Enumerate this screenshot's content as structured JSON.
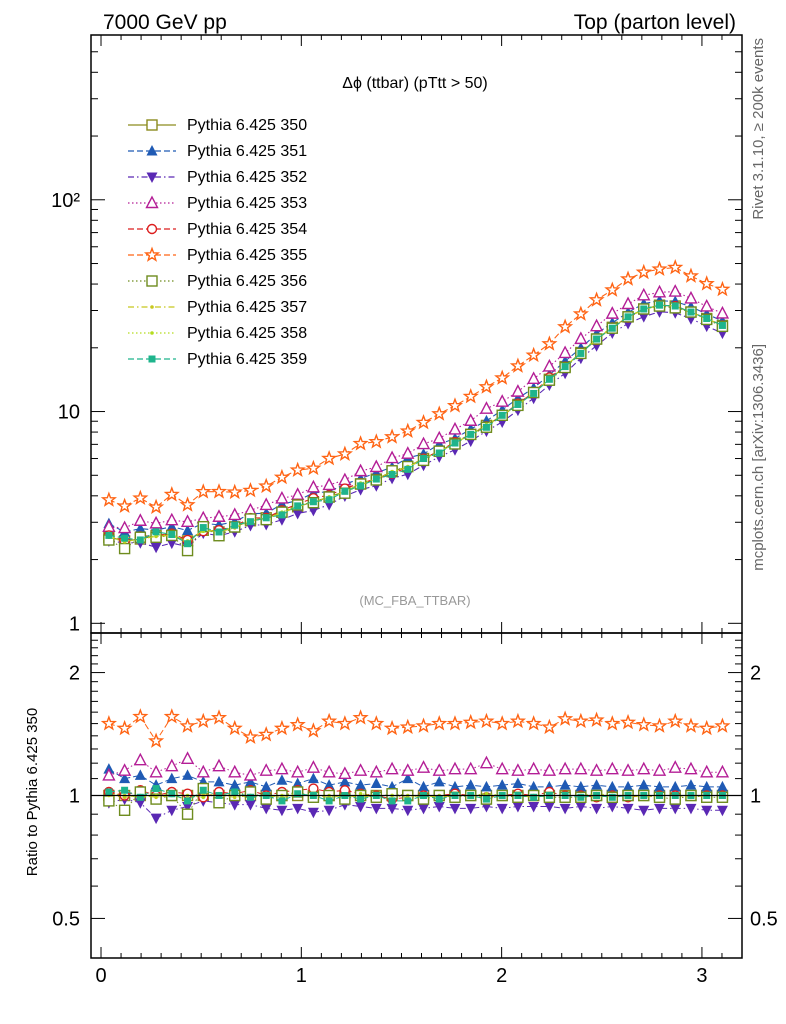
{
  "header": {
    "left": "7000 GeV pp",
    "right": "Top (parton level)"
  },
  "side_labels": {
    "top": "Rivet 3.1.10, ≥ 200k events",
    "bottom": "mcplots.cern.ch [arXiv:1306.3436]"
  },
  "chart_data": {
    "type": "line",
    "title": "Δϕ (ttbar) (pTtt > 50)",
    "annotation": "(MC_FBA_TTBAR)",
    "main": {
      "yscale": "log",
      "xlim": [
        -0.05,
        3.2
      ],
      "ylim": [
        0.9,
        600
      ],
      "yticks": [
        {
          "value": 1,
          "label": "1"
        },
        {
          "value": 10,
          "label": "10"
        },
        {
          "value": 100,
          "label": "10²"
        }
      ]
    },
    "ratio": {
      "ylabel": "Ratio to Pythia 6.425 350",
      "yscale": "log",
      "ylim": [
        0.4,
        2.5
      ],
      "yticks": [
        {
          "value": 0.5,
          "label": "0.5"
        },
        {
          "value": 1,
          "label": "1"
        },
        {
          "value": 2,
          "label": "2"
        }
      ]
    },
    "xticks": [
      {
        "value": 0,
        "label": "0"
      },
      {
        "value": 1,
        "label": "1"
      },
      {
        "value": 2,
        "label": "2"
      },
      {
        "value": 3,
        "label": "3"
      }
    ],
    "legend_position": "top-left",
    "x": [
      0.0393,
      0.1178,
      0.1963,
      0.2749,
      0.3534,
      0.432,
      0.5105,
      0.589,
      0.6676,
      0.7461,
      0.8247,
      0.9032,
      0.9817,
      1.0603,
      1.1388,
      1.2174,
      1.2959,
      1.3744,
      1.453,
      1.5315,
      1.6101,
      1.6886,
      1.7671,
      1.8457,
      1.9242,
      2.0028,
      2.0813,
      2.1598,
      2.2384,
      2.3169,
      2.3955,
      2.474,
      2.5525,
      2.6311,
      2.7096,
      2.7882,
      2.8667,
      2.9452,
      3.0238,
      3.1023
    ],
    "reference": [
      2.55,
      2.45,
      2.5,
      2.6,
      2.6,
      2.45,
      2.75,
      2.7,
      2.85,
      3.05,
      3.15,
      3.35,
      3.55,
      3.75,
      3.95,
      4.2,
      4.55,
      4.8,
      5.2,
      5.5,
      6.0,
      6.5,
      7.1,
      7.8,
      8.6,
      9.6,
      10.8,
      12.3,
      14.2,
      16.3,
      19.0,
      22.0,
      25.0,
      28.0,
      30.5,
      31.8,
      31.5,
      29.5,
      27.5,
      25.5
    ],
    "series": [
      {
        "name": "Pythia 6.425 350",
        "color": "#8c8c1e",
        "marker": "square-open",
        "dash": "solid",
        "ratio": [
          1.0,
          1.0,
          1.0,
          1.0,
          1.0,
          1.0,
          1.0,
          1.0,
          1.0,
          1.0,
          1.0,
          1.0,
          1.0,
          1.0,
          1.0,
          1.0,
          1.0,
          1.0,
          1.0,
          1.0,
          1.0,
          1.0,
          1.0,
          1.0,
          1.0,
          1.0,
          1.0,
          1.0,
          1.0,
          1.0,
          1.0,
          1.0,
          1.0,
          1.0,
          1.0,
          1.0,
          1.0,
          1.0,
          1.0,
          1.0
        ]
      },
      {
        "name": "Pythia 6.425 351",
        "color": "#1f5ab4",
        "marker": "triangle-up-filled",
        "dash": "dashed",
        "ratio": [
          1.16,
          1.1,
          1.12,
          1.06,
          1.1,
          1.12,
          1.08,
          1.08,
          1.06,
          1.08,
          1.05,
          1.09,
          1.07,
          1.1,
          1.06,
          1.08,
          1.06,
          1.07,
          1.05,
          1.1,
          1.05,
          1.08,
          1.05,
          1.06,
          1.05,
          1.06,
          1.07,
          1.05,
          1.05,
          1.06,
          1.05,
          1.06,
          1.05,
          1.05,
          1.06,
          1.05,
          1.05,
          1.06,
          1.05,
          1.05
        ]
      },
      {
        "name": "Pythia 6.425 352",
        "color": "#5a28b4",
        "marker": "triangle-down-filled",
        "dash": "dashdot",
        "ratio": [
          0.96,
          0.98,
          0.96,
          0.88,
          0.92,
          0.94,
          0.97,
          0.96,
          0.95,
          0.95,
          0.93,
          0.92,
          0.93,
          0.91,
          0.92,
          0.95,
          0.94,
          0.93,
          0.93,
          0.92,
          0.93,
          0.94,
          0.93,
          0.93,
          0.94,
          0.93,
          0.94,
          0.94,
          0.94,
          0.93,
          0.94,
          0.93,
          0.94,
          0.93,
          0.92,
          0.93,
          0.93,
          0.93,
          0.92,
          0.92
        ]
      },
      {
        "name": "Pythia 6.425 353",
        "color": "#b41e96",
        "marker": "triangle-up-open",
        "dash": "dotted",
        "ratio": [
          1.12,
          1.15,
          1.22,
          1.14,
          1.18,
          1.23,
          1.14,
          1.18,
          1.14,
          1.12,
          1.15,
          1.16,
          1.14,
          1.17,
          1.14,
          1.13,
          1.15,
          1.14,
          1.16,
          1.15,
          1.17,
          1.15,
          1.16,
          1.16,
          1.2,
          1.16,
          1.15,
          1.16,
          1.15,
          1.16,
          1.16,
          1.15,
          1.16,
          1.15,
          1.16,
          1.15,
          1.17,
          1.16,
          1.14,
          1.14
        ]
      },
      {
        "name": "Pythia 6.425 354",
        "color": "#dc1e1e",
        "marker": "circle-open",
        "dash": "dashed",
        "ratio": [
          1.02,
          1.0,
          1.03,
          1.0,
          1.02,
          1.01,
          0.99,
          1.02,
          1.01,
          1.03,
          1.0,
          1.02,
          1.03,
          1.04,
          1.02,
          1.03,
          1.01,
          1.0,
          0.98,
          0.99,
          1.0,
          1.0,
          1.01,
          1.0,
          0.99,
          1.0,
          1.01,
          1.0,
          1.02,
          1.0,
          1.0,
          0.99,
          1.0,
          0.99,
          1.0,
          1.0,
          1.0,
          1.0,
          1.0,
          1.0
        ]
      },
      {
        "name": "Pythia 6.425 355",
        "color": "#ff6414",
        "marker": "star-open",
        "dash": "dashed",
        "ratio": [
          1.5,
          1.46,
          1.56,
          1.36,
          1.56,
          1.48,
          1.52,
          1.55,
          1.46,
          1.39,
          1.41,
          1.46,
          1.49,
          1.44,
          1.52,
          1.5,
          1.55,
          1.5,
          1.46,
          1.47,
          1.48,
          1.5,
          1.5,
          1.51,
          1.52,
          1.5,
          1.52,
          1.5,
          1.47,
          1.54,
          1.52,
          1.53,
          1.5,
          1.51,
          1.49,
          1.48,
          1.52,
          1.48,
          1.46,
          1.48
        ]
      },
      {
        "name": "Pythia 6.425 356",
        "color": "#6e8c1e",
        "marker": "square-open",
        "dash": "dotted",
        "ratio": [
          0.97,
          0.92,
          1.02,
          0.98,
          1.0,
          0.9,
          1.04,
          0.96,
          1.0,
          1.02,
          0.98,
          1.0,
          1.02,
          0.99,
          1.0,
          0.98,
          1.0,
          0.99,
          1.01,
          1.0,
          0.98,
          1.0,
          0.99,
          1.0,
          0.98,
          1.0,
          0.99,
          1.0,
          0.99,
          0.99,
          0.99,
          1.0,
          0.99,
          1.0,
          1.0,
          0.99,
          0.98,
          1.0,
          0.99,
          0.99
        ]
      },
      {
        "name": "Pythia 6.425 357",
        "color": "#c8c81e",
        "marker": "small-dot",
        "dash": "dashdot",
        "ratio": [
          1.0,
          0.99,
          1.0,
          0.99,
          1.0,
          0.98,
          1.01,
          1.0,
          0.99,
          1.0,
          1.0,
          0.99,
          1.0,
          1.0,
          0.99,
          1.0,
          0.99,
          1.0,
          1.0,
          0.99,
          1.0,
          0.99,
          1.0,
          1.0,
          0.99,
          1.0,
          1.0,
          0.99,
          1.0,
          1.0,
          1.0,
          0.99,
          1.0,
          1.0,
          0.99,
          1.0,
          1.0,
          0.99,
          1.0,
          1.0
        ]
      },
      {
        "name": "Pythia 6.425 358",
        "color": "#b4dc1e",
        "marker": "small-dot",
        "dash": "dotted",
        "ratio": [
          1.01,
          1.0,
          0.99,
          1.0,
          1.01,
          1.0,
          0.99,
          1.01,
          1.0,
          1.0,
          0.99,
          1.0,
          1.01,
          1.0,
          1.0,
          0.99,
          1.01,
          1.0,
          1.0,
          1.0,
          0.99,
          1.0,
          1.0,
          1.0,
          1.01,
          1.0,
          1.0,
          1.0,
          1.0,
          1.0,
          1.0,
          1.01,
          1.0,
          1.0,
          1.0,
          1.0,
          1.0,
          1.0,
          1.0,
          1.0
        ]
      },
      {
        "name": "Pythia 6.425 359",
        "color": "#1eb48c",
        "marker": "square-filled",
        "dash": "dashed",
        "ratio": [
          1.02,
          1.03,
          0.99,
          1.04,
          1.01,
          0.97,
          1.03,
          1.0,
          1.02,
          0.99,
          1.0,
          0.97,
          1.01,
          1.0,
          0.97,
          1.0,
          0.98,
          1.0,
          0.97,
          0.97,
          1.0,
          0.98,
          1.0,
          1.0,
          0.98,
          1.0,
          1.0,
          0.99,
          1.0,
          1.0,
          0.99,
          1.0,
          0.99,
          1.0,
          1.0,
          1.0,
          1.0,
          1.0,
          1.0,
          1.0
        ]
      }
    ]
  }
}
